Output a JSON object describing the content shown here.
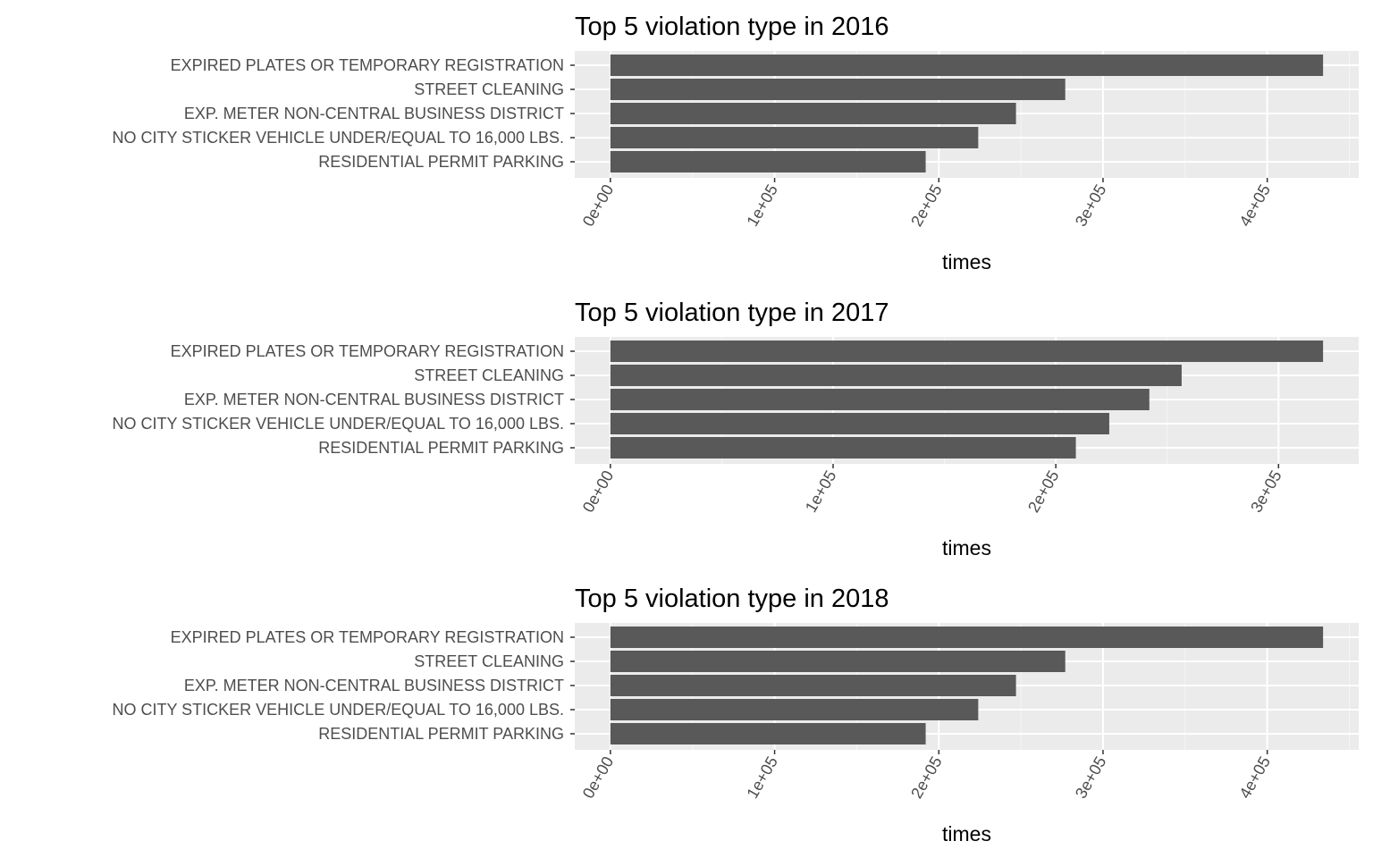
{
  "chart_data": [
    {
      "type": "bar",
      "orientation": "horizontal",
      "title": "Top 5 violation type in 2016",
      "xlabel": "times",
      "ylabel": "",
      "categories": [
        "EXPIRED PLATES OR TEMPORARY REGISTRATION",
        "STREET CLEANING",
        "EXP. METER NON-CENTRAL BUSINESS DISTRICT",
        "NO CITY STICKER VEHICLE UNDER/EQUAL TO 16,000 LBS.",
        "RESIDENTIAL PERMIT PARKING"
      ],
      "values": [
        434000,
        277000,
        247000,
        224000,
        192000
      ],
      "xlim": [
        -21700,
        455700
      ],
      "ticks": [
        0,
        100000,
        200000,
        300000,
        400000
      ],
      "tick_labels": [
        "0e+00",
        "1e+05",
        "2e+05",
        "3e+05",
        "4e+05"
      ],
      "grid": true
    },
    {
      "type": "bar",
      "orientation": "horizontal",
      "title": "Top 5 violation type in 2017",
      "xlabel": "times",
      "ylabel": "",
      "categories": [
        "EXPIRED PLATES OR TEMPORARY REGISTRATION",
        "STREET CLEANING",
        "EXP. METER NON-CENTRAL BUSINESS DISTRICT",
        "NO CITY STICKER VEHICLE UNDER/EQUAL TO 16,000 LBS.",
        "RESIDENTIAL PERMIT PARKING"
      ],
      "values": [
        320000,
        256500,
        242000,
        224000,
        209000
      ],
      "xlim": [
        -16000,
        336000
      ],
      "ticks": [
        0,
        100000,
        200000,
        300000
      ],
      "tick_labels": [
        "0e+00",
        "1e+05",
        "2e+05",
        "3e+05"
      ],
      "grid": true
    },
    {
      "type": "bar",
      "orientation": "horizontal",
      "title": "Top 5 violation type in 2018",
      "xlabel": "times",
      "ylabel": "",
      "categories": [
        "EXPIRED PLATES OR TEMPORARY REGISTRATION",
        "STREET CLEANING",
        "EXP. METER NON-CENTRAL BUSINESS DISTRICT",
        "NO CITY STICKER VEHICLE UNDER/EQUAL TO 16,000 LBS.",
        "RESIDENTIAL PERMIT PARKING"
      ],
      "values": [
        434000,
        277000,
        247000,
        224000,
        192000
      ],
      "xlim": [
        -21700,
        455700
      ],
      "ticks": [
        0,
        100000,
        200000,
        300000,
        400000
      ],
      "tick_labels": [
        "0e+00",
        "1e+05",
        "2e+05",
        "3e+05",
        "4e+05"
      ],
      "grid": true
    }
  ],
  "colors": {
    "panel_background": "#ebebeb",
    "grid_major": "#ffffff",
    "grid_minor": "#f5f5f5",
    "bar_fill": "#595959",
    "tick_text": "#4d4d4d",
    "axis_title": "#000000"
  }
}
